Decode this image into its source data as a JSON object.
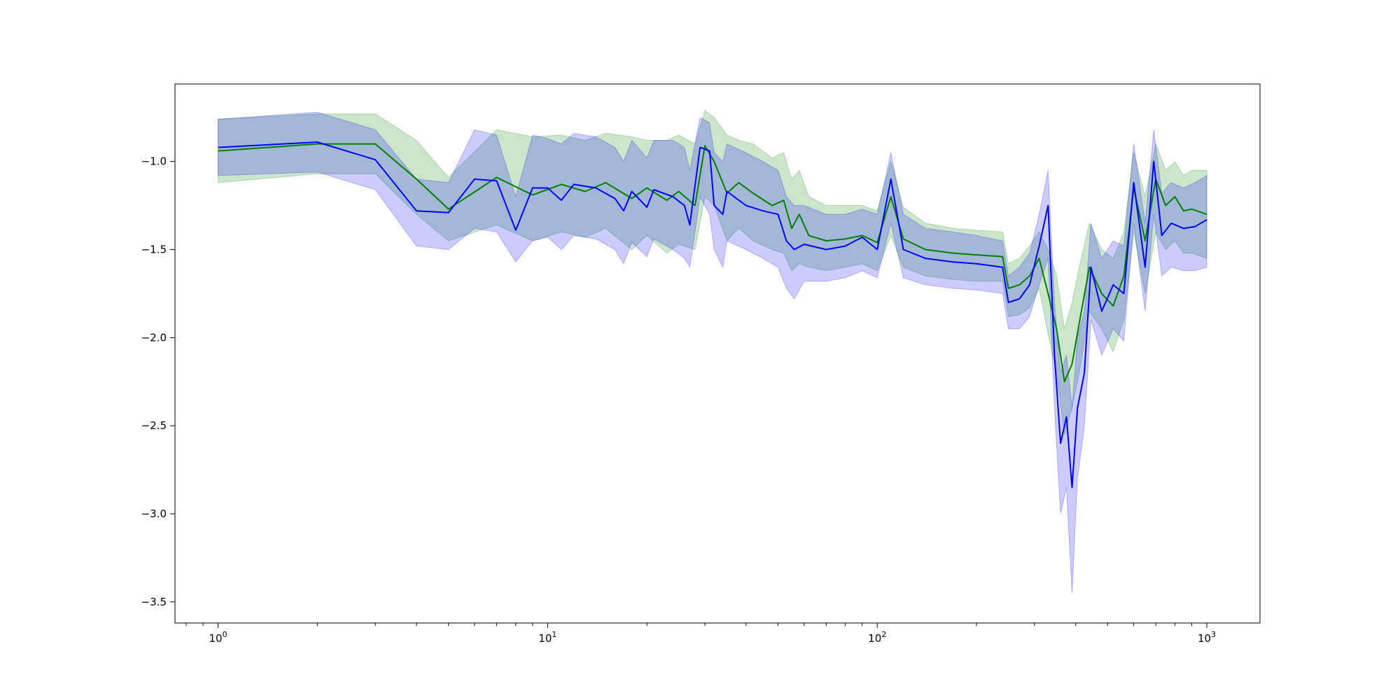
{
  "chart_data": {
    "type": "line",
    "xscale": "log",
    "xlim": [
      0.74,
      1450
    ],
    "ylim": [
      -3.62,
      -0.56
    ],
    "grid": false,
    "x_ticks": [
      {
        "value": 1,
        "base": "10",
        "exp": "0"
      },
      {
        "value": 10,
        "base": "10",
        "exp": "1"
      },
      {
        "value": 100,
        "base": "10",
        "exp": "2"
      },
      {
        "value": 1000,
        "base": "10",
        "exp": "3"
      }
    ],
    "y_ticks": [
      {
        "value": -1.0,
        "label": "−1.0"
      },
      {
        "value": -1.5,
        "label": "−1.5"
      },
      {
        "value": -2.0,
        "label": "−2.0"
      },
      {
        "value": -2.5,
        "label": "−2.5"
      },
      {
        "value": -3.0,
        "label": "−3.0"
      },
      {
        "value": -3.5,
        "label": "−3.5"
      }
    ],
    "series": [
      {
        "color": "#008000",
        "band_color": "#008000",
        "band_opacity": 0.2,
        "points": [
          [
            1,
            -0.94,
            -0.76,
            -1.12
          ],
          [
            2,
            -0.9,
            -0.73,
            -1.07
          ],
          [
            3,
            -0.9,
            -0.73,
            -1.07
          ],
          [
            4,
            -1.1,
            -0.88,
            -1.3
          ],
          [
            5,
            -1.27,
            -1.09,
            -1.45
          ],
          [
            7,
            -1.09,
            -0.82,
            -1.36
          ],
          [
            9,
            -1.19,
            -0.86,
            -1.45
          ],
          [
            11,
            -1.13,
            -0.85,
            -1.4
          ],
          [
            13,
            -1.17,
            -0.88,
            -1.43
          ],
          [
            15,
            -1.12,
            -0.84,
            -1.38
          ],
          [
            18,
            -1.21,
            -0.86,
            -1.5
          ],
          [
            20,
            -1.15,
            -0.88,
            -1.42
          ],
          [
            23,
            -1.22,
            -0.88,
            -1.52
          ],
          [
            25,
            -1.17,
            -0.85,
            -1.47
          ],
          [
            28,
            -1.25,
            -0.9,
            -1.5
          ],
          [
            30,
            -0.91,
            -0.71,
            -1.2
          ],
          [
            32,
            -1.0,
            -0.75,
            -1.25
          ],
          [
            35,
            -1.18,
            -0.85,
            -1.45
          ],
          [
            38,
            -1.12,
            -0.88,
            -1.38
          ],
          [
            42,
            -1.18,
            -0.9,
            -1.45
          ],
          [
            48,
            -1.25,
            -0.98,
            -1.5
          ],
          [
            52,
            -1.22,
            -0.95,
            -1.52
          ],
          [
            55,
            -1.38,
            -1.1,
            -1.62
          ],
          [
            58,
            -1.3,
            -1.05,
            -1.58
          ],
          [
            62,
            -1.42,
            -1.2,
            -1.6
          ],
          [
            70,
            -1.45,
            -1.25,
            -1.62
          ],
          [
            80,
            -1.44,
            -1.25,
            -1.6
          ],
          [
            90,
            -1.42,
            -1.25,
            -1.58
          ],
          [
            100,
            -1.46,
            -1.28,
            -1.62
          ],
          [
            110,
            -1.2,
            -1.0,
            -1.42
          ],
          [
            120,
            -1.44,
            -1.26,
            -1.6
          ],
          [
            140,
            -1.5,
            -1.35,
            -1.65
          ],
          [
            170,
            -1.52,
            -1.38,
            -1.67
          ],
          [
            200,
            -1.53,
            -1.39,
            -1.68
          ],
          [
            240,
            -1.54,
            -1.4,
            -1.68
          ],
          [
            250,
            -1.72,
            -1.58,
            -1.88
          ],
          [
            270,
            -1.7,
            -1.55,
            -1.87
          ],
          [
            290,
            -1.65,
            -1.48,
            -1.83
          ],
          [
            310,
            -1.55,
            -1.4,
            -1.72
          ],
          [
            330,
            -1.75,
            -1.5,
            -1.98
          ],
          [
            350,
            -1.95,
            -1.65,
            -2.2
          ],
          [
            370,
            -2.25,
            -1.95,
            -2.55
          ],
          [
            390,
            -2.15,
            -1.8,
            -2.4
          ],
          [
            410,
            -1.92,
            -1.6,
            -2.2
          ],
          [
            440,
            -1.6,
            -1.35,
            -1.85
          ],
          [
            480,
            -1.75,
            -1.5,
            -1.95
          ],
          [
            520,
            -1.82,
            -1.55,
            -2.08
          ],
          [
            560,
            -1.65,
            -1.4,
            -1.9
          ],
          [
            600,
            -1.15,
            -0.95,
            -1.4
          ],
          [
            650,
            -1.45,
            -1.2,
            -1.75
          ],
          [
            700,
            -1.1,
            -0.9,
            -1.4
          ],
          [
            750,
            -1.25,
            -1.05,
            -1.5
          ],
          [
            800,
            -1.2,
            -1.0,
            -1.45
          ],
          [
            850,
            -1.28,
            -1.08,
            -1.52
          ],
          [
            900,
            -1.27,
            -1.05,
            -1.52
          ],
          [
            1000,
            -1.3,
            -1.05,
            -1.55
          ]
        ]
      },
      {
        "color": "#0000ff",
        "band_color": "#0000ff",
        "band_opacity": 0.2,
        "points": [
          [
            1,
            -0.92,
            -0.76,
            -1.08
          ],
          [
            2,
            -0.89,
            -0.72,
            -1.06
          ],
          [
            3,
            -0.99,
            -0.82,
            -1.16
          ],
          [
            4,
            -1.28,
            -1.1,
            -1.48
          ],
          [
            5,
            -1.29,
            -1.12,
            -1.5
          ],
          [
            6,
            -1.1,
            -0.82,
            -1.38
          ],
          [
            7,
            -1.11,
            -0.85,
            -1.4
          ],
          [
            8,
            -1.39,
            -1.2,
            -1.57
          ],
          [
            9,
            -1.15,
            -0.85,
            -1.45
          ],
          [
            10,
            -1.15,
            -0.87,
            -1.43
          ],
          [
            11,
            -1.22,
            -0.9,
            -1.5
          ],
          [
            12,
            -1.13,
            -0.84,
            -1.42
          ],
          [
            14,
            -1.15,
            -0.86,
            -1.44
          ],
          [
            16,
            -1.21,
            -0.92,
            -1.5
          ],
          [
            17,
            -1.28,
            -1.0,
            -1.58
          ],
          [
            18,
            -1.17,
            -0.88,
            -1.46
          ],
          [
            20,
            -1.26,
            -0.98,
            -1.54
          ],
          [
            21,
            -1.16,
            -0.88,
            -1.44
          ],
          [
            24,
            -1.2,
            -0.88,
            -1.5
          ],
          [
            26,
            -1.25,
            -0.92,
            -1.55
          ],
          [
            27,
            -1.36,
            -1.05,
            -1.6
          ],
          [
            29,
            -0.92,
            -0.75,
            -1.2
          ],
          [
            31,
            -0.94,
            -0.78,
            -1.3
          ],
          [
            32,
            -1.25,
            -0.95,
            -1.5
          ],
          [
            34,
            -1.3,
            -1.0,
            -1.6
          ],
          [
            35,
            -1.17,
            -0.9,
            -1.45
          ],
          [
            40,
            -1.25,
            -0.95,
            -1.5
          ],
          [
            45,
            -1.28,
            -1.0,
            -1.55
          ],
          [
            50,
            -1.3,
            -1.05,
            -1.6
          ],
          [
            53,
            -1.45,
            -1.2,
            -1.72
          ],
          [
            56,
            -1.5,
            -1.25,
            -1.78
          ],
          [
            60,
            -1.47,
            -1.25,
            -1.68
          ],
          [
            70,
            -1.5,
            -1.3,
            -1.68
          ],
          [
            80,
            -1.48,
            -1.3,
            -1.66
          ],
          [
            90,
            -1.43,
            -1.27,
            -1.62
          ],
          [
            100,
            -1.5,
            -1.3,
            -1.66
          ],
          [
            110,
            -1.1,
            -0.95,
            -1.35
          ],
          [
            120,
            -1.5,
            -1.3,
            -1.66
          ],
          [
            140,
            -1.55,
            -1.38,
            -1.7
          ],
          [
            170,
            -1.57,
            -1.4,
            -1.72
          ],
          [
            200,
            -1.58,
            -1.42,
            -1.73
          ],
          [
            240,
            -1.6,
            -1.45,
            -1.75
          ],
          [
            250,
            -1.8,
            -1.65,
            -1.95
          ],
          [
            270,
            -1.78,
            -1.6,
            -1.95
          ],
          [
            290,
            -1.7,
            -1.52,
            -1.88
          ],
          [
            310,
            -1.48,
            -1.3,
            -1.7
          ],
          [
            330,
            -1.25,
            -1.05,
            -1.55
          ],
          [
            345,
            -2.1,
            -1.8,
            -2.4
          ],
          [
            360,
            -2.6,
            -2.2,
            -3.0
          ],
          [
            375,
            -2.45,
            -2.1,
            -2.85
          ],
          [
            390,
            -2.85,
            -2.4,
            -3.45
          ],
          [
            405,
            -2.4,
            -2.0,
            -2.8
          ],
          [
            425,
            -2.2,
            -1.85,
            -2.5
          ],
          [
            445,
            -1.6,
            -1.35,
            -1.9
          ],
          [
            480,
            -1.85,
            -1.55,
            -2.1
          ],
          [
            520,
            -1.7,
            -1.45,
            -1.95
          ],
          [
            560,
            -1.75,
            -1.48,
            -2.02
          ],
          [
            600,
            -1.12,
            -0.9,
            -1.35
          ],
          [
            650,
            -1.6,
            -1.35,
            -1.85
          ],
          [
            690,
            -1.0,
            -0.82,
            -1.3
          ],
          [
            730,
            -1.42,
            -1.18,
            -1.65
          ],
          [
            780,
            -1.35,
            -1.12,
            -1.6
          ],
          [
            850,
            -1.38,
            -1.15,
            -1.62
          ],
          [
            920,
            -1.37,
            -1.12,
            -1.62
          ],
          [
            1000,
            -1.33,
            -1.08,
            -1.6
          ]
        ]
      }
    ]
  }
}
